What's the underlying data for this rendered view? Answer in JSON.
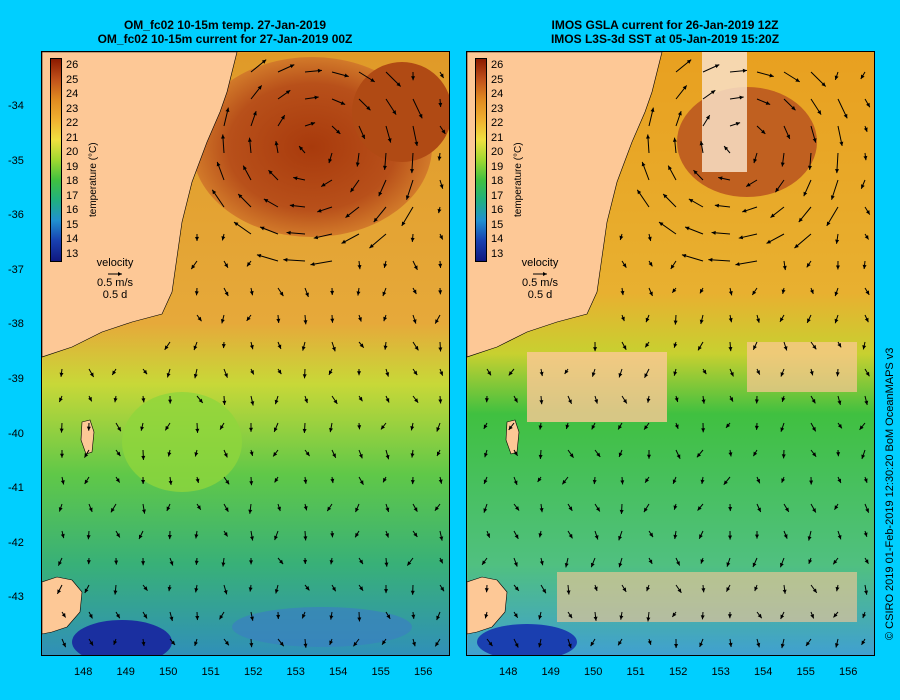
{
  "panels": [
    {
      "title_line1": "OM_fc02 10-15m temp. 27-Jan-2019",
      "title_line2": "OM_fc02 10-15m current for 27-Jan-2019 00Z",
      "colorbar": {
        "labels": [
          "26",
          "25",
          "24",
          "23",
          "22",
          "21",
          "20",
          "19",
          "18",
          "17",
          "16",
          "15",
          "14",
          "13"
        ],
        "title": "temperature (°C)"
      },
      "velocity_legend": {
        "line1": "velocity",
        "line2": "0.5 m/s",
        "line3": "0.5 d"
      }
    },
    {
      "title_line1": "IMOS GSLA current for 26-Jan-2019 12Z",
      "title_line2": "IMOS L3S-3d SST at 05-Jan-2019 15:20Z",
      "colorbar": {
        "labels": [
          "26",
          "25",
          "24",
          "23",
          "22",
          "21",
          "20",
          "19",
          "18",
          "17",
          "16",
          "15",
          "14",
          "13"
        ],
        "title": "temperature (°C)"
      },
      "velocity_legend": {
        "line1": "velocity",
        "line2": "0.5 m/s",
        "line3": "0.5 d"
      }
    }
  ],
  "y_ticks": [
    "-34",
    "-35",
    "-36",
    "-37",
    "-38",
    "-39",
    "-40",
    "-41",
    "-42",
    "-43"
  ],
  "x_ticks": [
    "148",
    "149",
    "150",
    "151",
    "152",
    "153",
    "154",
    "155",
    "156"
  ],
  "credit": "© CSIRO 2019   01-Feb-2019 12:30:20 BoM OceanMAPS v3",
  "colors": {
    "background": "#00cfff",
    "land": "#fdc896",
    "warm": "#b04010",
    "mid": "#e8a020",
    "cool": "#40c040",
    "cold": "#2060c0"
  }
}
